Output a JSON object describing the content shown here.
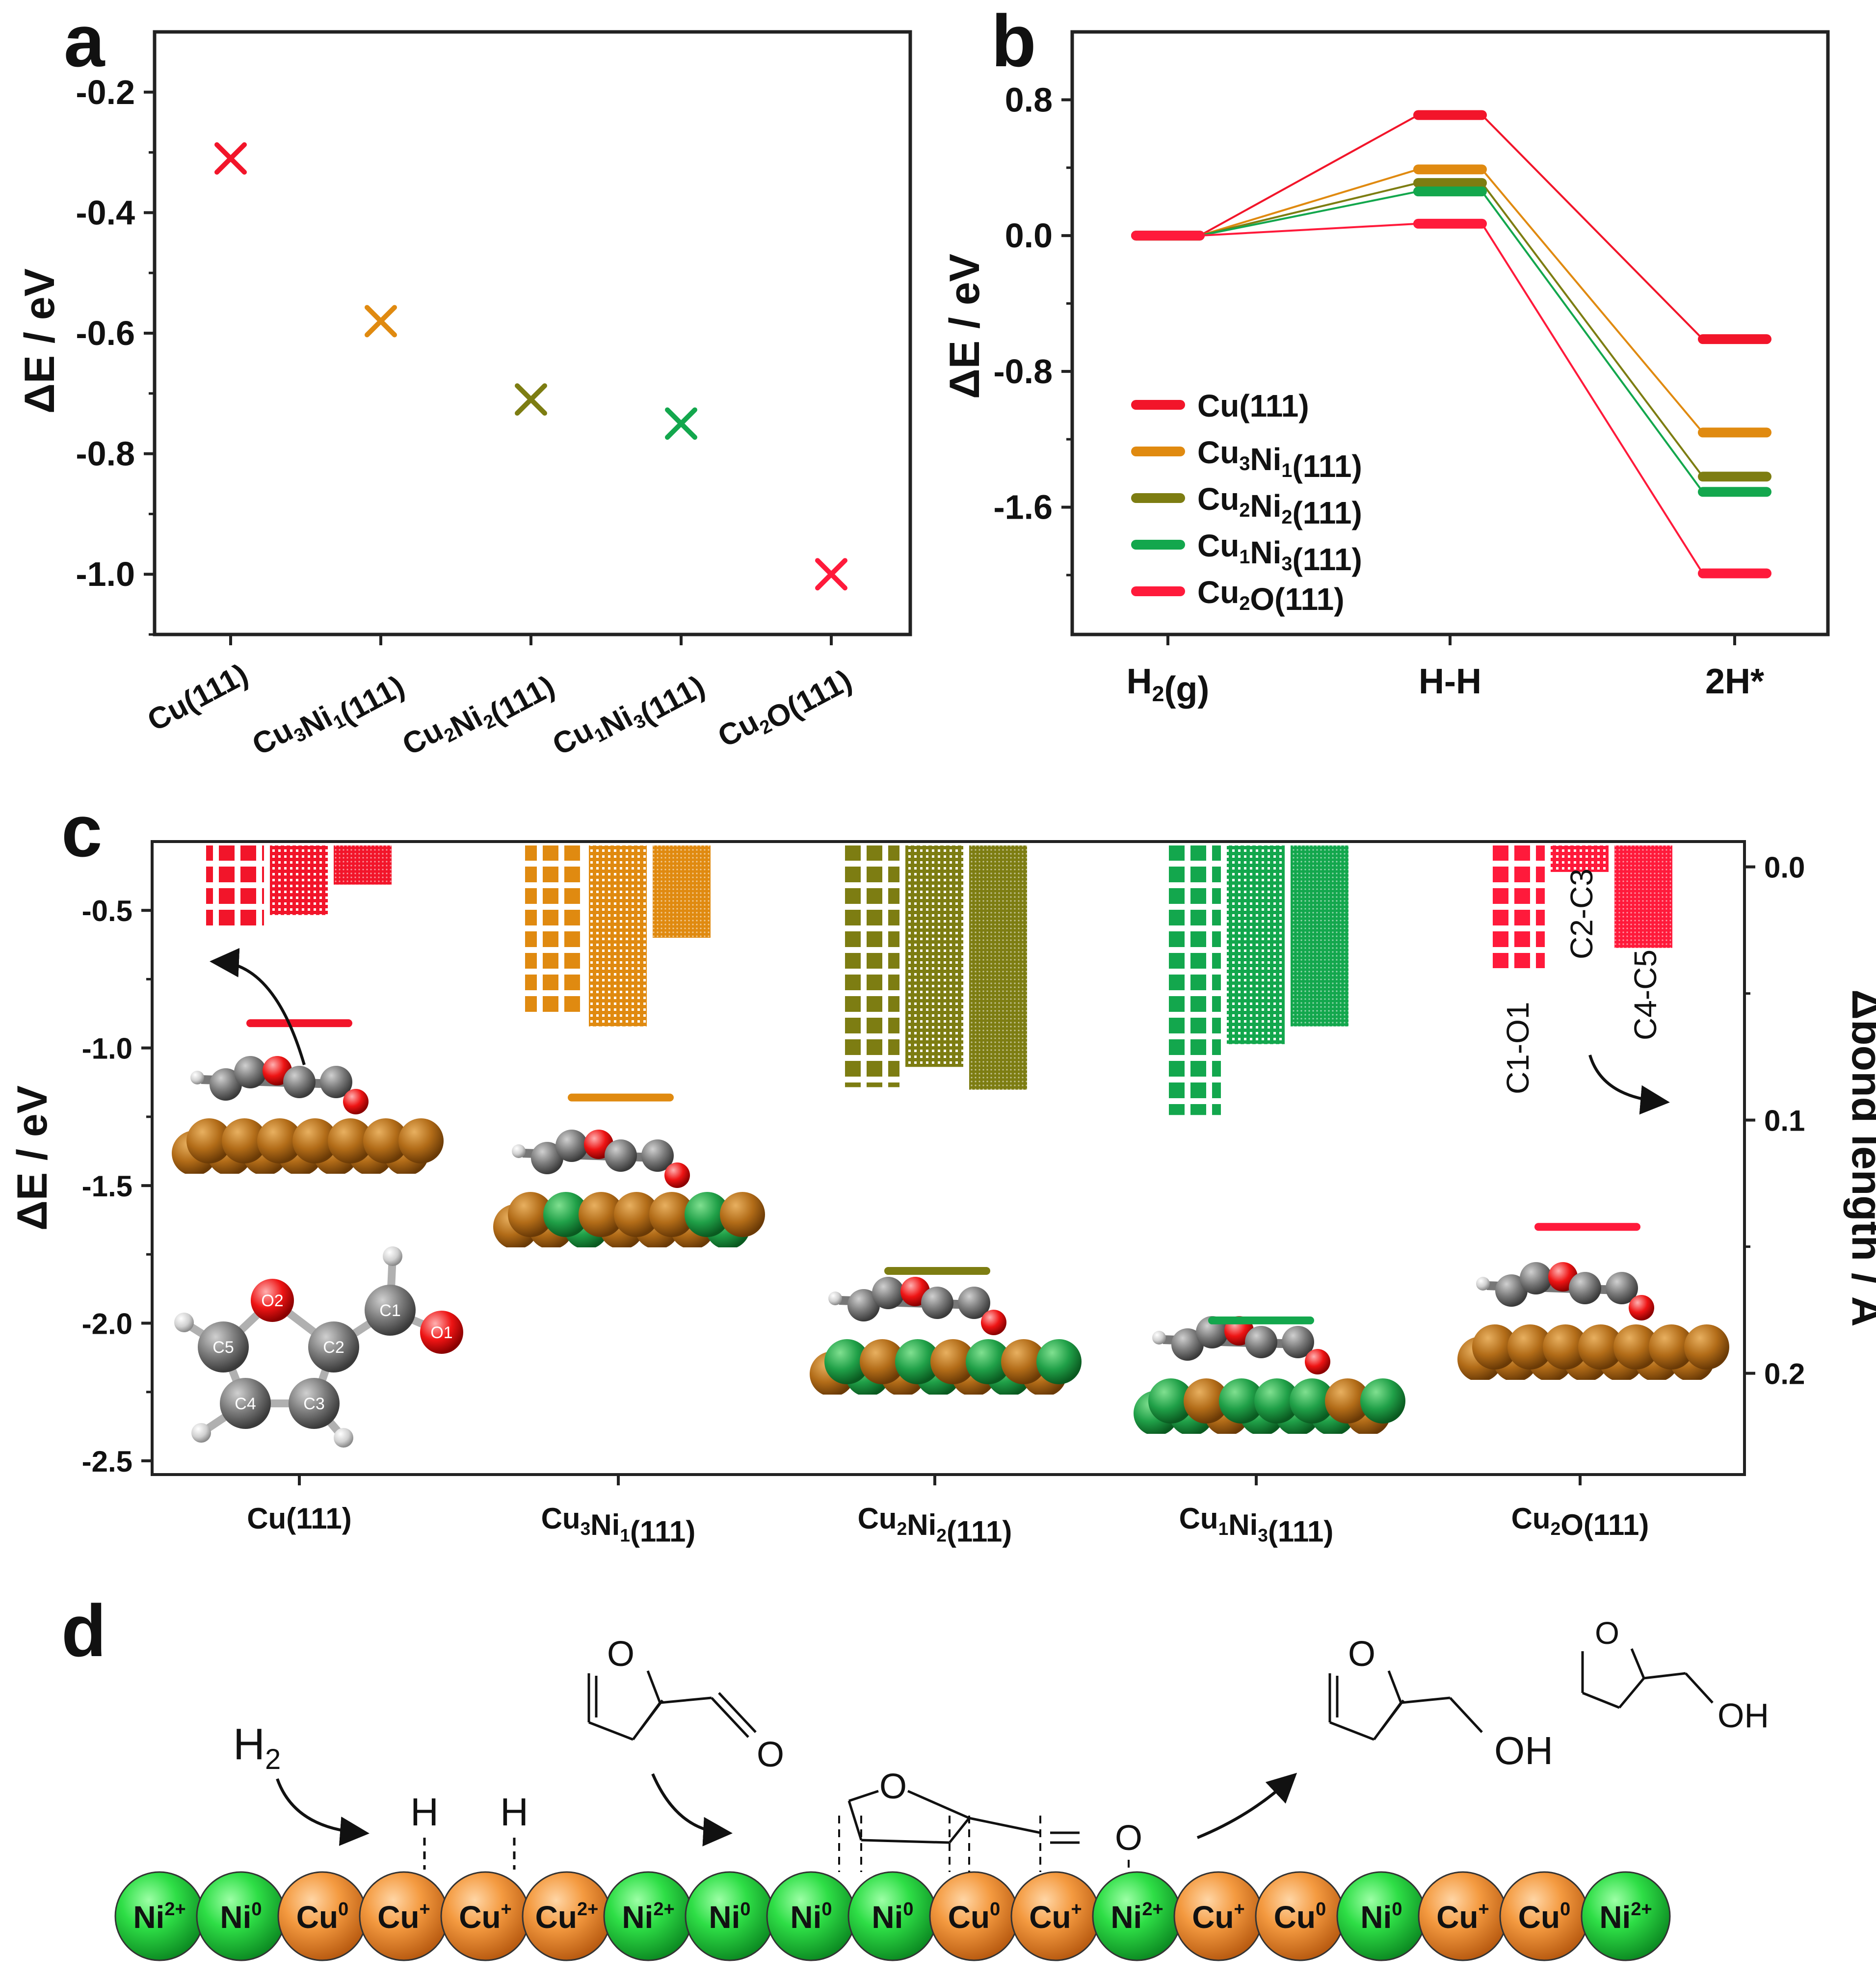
{
  "colors": {
    "cu111": "#f2152a",
    "cu3ni1": "#e08a10",
    "cu2ni2": "#7d7d12",
    "cu1ni3": "#13a74d",
    "cu2o": "#ff1a3b",
    "cu_atom": "#b26c18",
    "ni_atom": "#20a048",
    "c_atom": "#777777",
    "o_atom": "#ee1010",
    "h_atom": "#d8d8d8",
    "sphere_ni": "#22d03c",
    "sphere_cu": "#f0963c"
  },
  "chart_data": [
    {
      "panel": "a",
      "type": "scatter",
      "marker": "x",
      "ylabel": "ΔE / eV",
      "ylim": [
        -1.1,
        -0.1
      ],
      "yticks": [
        "-0.2",
        "-0.4",
        "-0.6",
        "-0.8",
        "-1.0"
      ],
      "yticks_values": [
        -0.2,
        -0.4,
        -0.6,
        -0.8,
        -1.0
      ],
      "categories": [
        "Cu(111)",
        "Cu3Ni1(111)",
        "Cu2Ni2(111)",
        "Cu1Ni3(111)",
        "Cu2O(111)"
      ],
      "category_parts": [
        {
          "a": "Cu(111)",
          "a_sub": "",
          "b": "",
          "b_sub": "",
          "c": ""
        },
        {
          "a": "Cu",
          "a_sub": "3",
          "b": "Ni",
          "b_sub": "1",
          "c": "(111)"
        },
        {
          "a": "Cu",
          "a_sub": "2",
          "b": "Ni",
          "b_sub": "2",
          "c": "(111)"
        },
        {
          "a": "Cu",
          "a_sub": "1",
          "b": "Ni",
          "b_sub": "3",
          "c": "(111)"
        },
        {
          "a": "Cu",
          "a_sub": "2",
          "b": "O(111)",
          "b_sub": "",
          "c": ""
        }
      ],
      "values": [
        -0.31,
        -0.58,
        -0.71,
        -0.75,
        -1.0
      ],
      "color_keys": [
        "cu111",
        "cu3ni1",
        "cu2ni2",
        "cu1ni3",
        "cu2o"
      ]
    },
    {
      "panel": "b",
      "type": "line",
      "ylabel": "ΔE / eV",
      "ylim": [
        -2.35,
        1.2
      ],
      "yticks": [
        "0.8",
        "0.0",
        "-0.8",
        "-1.6"
      ],
      "yticks_values": [
        0.8,
        0.0,
        -0.8,
        -1.6
      ],
      "x": [
        "H2(g)",
        "H-H",
        "2H*"
      ],
      "x_parts": [
        {
          "a": "H",
          "a_sub": "2",
          "b": "(g)"
        },
        {
          "a": "H-H",
          "a_sub": "",
          "b": ""
        },
        {
          "a": "2H*",
          "a_sub": "",
          "b": ""
        }
      ],
      "series": [
        {
          "name": "Cu(111)",
          "values": [
            0.0,
            0.71,
            -0.61
          ],
          "color_key": "cu111"
        },
        {
          "name": "Cu3Ni1(111)",
          "values": [
            0.0,
            0.39,
            -1.16
          ],
          "color_key": "cu3ni1"
        },
        {
          "name": "Cu2Ni2(111)",
          "values": [
            0.0,
            0.31,
            -1.42
          ],
          "color_key": "cu2ni2"
        },
        {
          "name": "Cu1Ni3(111)",
          "values": [
            0.0,
            0.26,
            -1.51
          ],
          "color_key": "cu1ni3"
        },
        {
          "name": "Cu2O(111)",
          "values": [
            0.0,
            0.07,
            -1.99
          ],
          "color_key": "cu2o"
        }
      ],
      "legend_parts": [
        {
          "a": "Cu(111)",
          "a_sub": "",
          "b": "",
          "b_sub": "",
          "c": ""
        },
        {
          "a": "Cu",
          "a_sub": "3",
          "b": "Ni",
          "b_sub": "1",
          "c": "(111)"
        },
        {
          "a": "Cu",
          "a_sub": "2",
          "b": "Ni",
          "b_sub": "2",
          "c": "(111)"
        },
        {
          "a": "Cu",
          "a_sub": "1",
          "b": "Ni",
          "b_sub": "3",
          "c": "(111)"
        },
        {
          "a": "Cu",
          "a_sub": "2",
          "b": "O(111)",
          "b_sub": "",
          "c": ""
        }
      ],
      "legend_position": "lower-left"
    },
    {
      "panel": "c",
      "type": "bar",
      "ylabel": "ΔE / eV",
      "ylabel_right": "Δbond length / Å",
      "ylim": [
        -2.55,
        -0.25
      ],
      "yticks": [
        "-0.5",
        "-1.0",
        "-1.5",
        "-2.0",
        "-2.5"
      ],
      "yticks_values": [
        -0.5,
        -1.0,
        -1.5,
        -2.0,
        -2.5
      ],
      "ylim_right": [
        -0.01,
        0.24
      ],
      "yticks_right": [
        "0.0",
        "0.1",
        "0.2"
      ],
      "yticks_right_values": [
        0.0,
        0.1,
        0.2
      ],
      "categories": [
        "Cu(111)",
        "Cu3Ni1(111)",
        "Cu2Ni2(111)",
        "Cu1Ni3(111)",
        "Cu2O(111)"
      ],
      "category_parts": [
        {
          "a": "Cu(111)",
          "a_sub": "",
          "b": "",
          "b_sub": "",
          "c": ""
        },
        {
          "a": "Cu",
          "a_sub": "3",
          "b": "Ni",
          "b_sub": "1",
          "c": "(111)"
        },
        {
          "a": "Cu",
          "a_sub": "2",
          "b": "Ni",
          "b_sub": "2",
          "c": "(111)"
        },
        {
          "a": "Cu",
          "a_sub": "1",
          "b": "Ni",
          "b_sub": "3",
          "c": "(111)"
        },
        {
          "a": "Cu",
          "a_sub": "2",
          "b": "O(111)",
          "b_sub": "",
          "c": ""
        }
      ],
      "adsorption_energy": [
        -0.91,
        -1.18,
        -1.81,
        -1.99,
        -1.65
      ],
      "bond_series": [
        {
          "name": "C1-O1",
          "values": [
            0.024,
            0.058,
            0.087,
            0.098,
            0.04
          ]
        },
        {
          "name": "C2-C3",
          "values": [
            0.019,
            0.063,
            0.079,
            0.07,
            0.002
          ]
        },
        {
          "name": "C4-C5",
          "values": [
            0.007,
            0.028,
            0.088,
            0.063,
            0.032
          ]
        }
      ],
      "color_keys": [
        "cu111",
        "cu3ni1",
        "cu2ni2",
        "cu1ni3",
        "cu2o"
      ],
      "atom_labels": [
        "O2",
        "C1",
        "O1",
        "C5",
        "C2",
        "C4",
        "C3"
      ]
    }
  ],
  "panel_labels": [
    "a",
    "b",
    "c",
    "d"
  ],
  "scheme": {
    "h2": "H",
    "h2_sub": "2",
    "h_atoms": [
      "H",
      "H"
    ],
    "o_labels": [
      "O",
      "O",
      "O",
      "O",
      "O",
      "O"
    ],
    "oh_labels": [
      "OH",
      "OH"
    ],
    "spheres": [
      {
        "el": "Ni",
        "ch": "2+",
        "kind": "ni"
      },
      {
        "el": "Ni",
        "ch": "0",
        "kind": "ni"
      },
      {
        "el": "Cu",
        "ch": "0",
        "kind": "cu"
      },
      {
        "el": "Cu",
        "ch": "+",
        "kind": "cu"
      },
      {
        "el": "Cu",
        "ch": "+",
        "kind": "cu"
      },
      {
        "el": "Cu",
        "ch": "2+",
        "kind": "cu"
      },
      {
        "el": "Ni",
        "ch": "2+",
        "kind": "ni"
      },
      {
        "el": "Ni",
        "ch": "0",
        "kind": "ni"
      },
      {
        "el": "Ni",
        "ch": "0",
        "kind": "ni"
      },
      {
        "el": "Ni",
        "ch": "0",
        "kind": "ni"
      },
      {
        "el": "Cu",
        "ch": "0",
        "kind": "cu"
      },
      {
        "el": "Cu",
        "ch": "+",
        "kind": "cu"
      },
      {
        "el": "Ni",
        "ch": "2+",
        "kind": "ni"
      },
      {
        "el": "Cu",
        "ch": "+",
        "kind": "cu"
      },
      {
        "el": "Cu",
        "ch": "0",
        "kind": "cu"
      },
      {
        "el": "Ni",
        "ch": "0",
        "kind": "ni"
      },
      {
        "el": "Cu",
        "ch": "+",
        "kind": "cu"
      },
      {
        "el": "Cu",
        "ch": "0",
        "kind": "cu"
      },
      {
        "el": "Ni",
        "ch": "2+",
        "kind": "ni"
      }
    ]
  }
}
